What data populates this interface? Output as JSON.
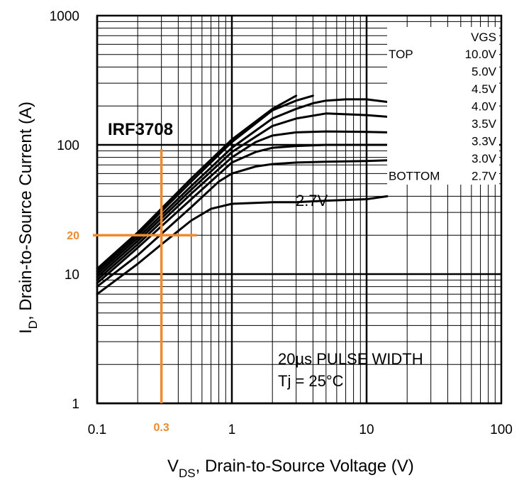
{
  "chart_data": {
    "type": "line",
    "title": "",
    "xlabel_main": "V",
    "xlabel_sub": "DS",
    "xlabel_rest": ", Drain-to-Source Voltage (V)",
    "ylabel_main": "I",
    "ylabel_sub": "D",
    "ylabel_rest": ", Drain-to-Source Current (A)",
    "x_scale": "log",
    "y_scale": "log",
    "xlim": [
      0.1,
      100
    ],
    "ylim": [
      1,
      1000
    ],
    "x_ticks": [
      {
        "value": 0.1,
        "label": "0.1"
      },
      {
        "value": 1,
        "label": "1"
      },
      {
        "value": 10,
        "label": "10"
      },
      {
        "value": 100,
        "label": "100"
      }
    ],
    "y_ticks": [
      {
        "value": 1,
        "label": "1"
      },
      {
        "value": 10,
        "label": "10"
      },
      {
        "value": 100,
        "label": "100"
      },
      {
        "value": 1000,
        "label": "1000"
      }
    ],
    "grid": true,
    "device_label": "IRF3708",
    "annotations": {
      "pulse": "20µs PULSE WIDTH",
      "tj": "Tj = 25°C",
      "curve_label": "2.7V"
    },
    "legend": {
      "placement": "top-right",
      "header": "VGS",
      "top_label": "TOP",
      "bottom_label": "BOTTOM",
      "entries": [
        "10.0V",
        "5.0V",
        "4.5V",
        "4.0V",
        "3.5V",
        "3.3V",
        "3.0V",
        "2.7V"
      ]
    },
    "series": [
      {
        "name": "10.0V",
        "x": [
          0.1,
          0.2,
          0.5,
          1,
          2,
          3
        ],
        "y": [
          11,
          21,
          55,
          110,
          190,
          240
        ]
      },
      {
        "name": "5.0V",
        "x": [
          0.1,
          0.2,
          0.5,
          1,
          2,
          3,
          4
        ],
        "y": [
          10.5,
          20,
          52,
          105,
          185,
          220,
          240
        ]
      },
      {
        "name": "4.5V",
        "x": [
          0.1,
          0.2,
          0.5,
          1,
          2,
          3,
          4,
          5,
          7,
          10,
          15
        ],
        "y": [
          10,
          19,
          48,
          95,
          160,
          190,
          210,
          220,
          225,
          225,
          215
        ]
      },
      {
        "name": "4.0V",
        "x": [
          0.1,
          0.2,
          0.5,
          1,
          2,
          3,
          5,
          10,
          15
        ],
        "y": [
          9.5,
          18,
          45,
          88,
          140,
          160,
          175,
          170,
          165
        ]
      },
      {
        "name": "3.5V",
        "x": [
          0.1,
          0.2,
          0.5,
          1,
          1.5,
          2,
          3,
          5,
          10,
          15
        ],
        "y": [
          9,
          17,
          42,
          80,
          105,
          118,
          125,
          127,
          126,
          125
        ]
      },
      {
        "name": "3.3V",
        "x": [
          0.1,
          0.2,
          0.5,
          1,
          1.5,
          2,
          3,
          5,
          10,
          15
        ],
        "y": [
          8.5,
          16,
          38,
          73,
          88,
          95,
          98,
          100,
          100,
          100
        ]
      },
      {
        "name": "3.0V",
        "x": [
          0.1,
          0.2,
          0.5,
          0.8,
          1,
          1.5,
          2,
          3,
          5,
          10,
          15
        ],
        "y": [
          8,
          14,
          33,
          52,
          60,
          68,
          71,
          73,
          74,
          75,
          76
        ]
      },
      {
        "name": "2.7V",
        "x": [
          0.1,
          0.2,
          0.3,
          0.5,
          0.7,
          1,
          2,
          3,
          5,
          10,
          15
        ],
        "y": [
          7,
          12,
          17,
          26,
          32,
          35,
          36,
          36,
          37,
          38,
          40
        ]
      }
    ],
    "markers": {
      "x": {
        "value": 0.3,
        "label": "0.3"
      },
      "y": {
        "value": 20,
        "label": "20"
      },
      "color": "#f08a30"
    }
  }
}
